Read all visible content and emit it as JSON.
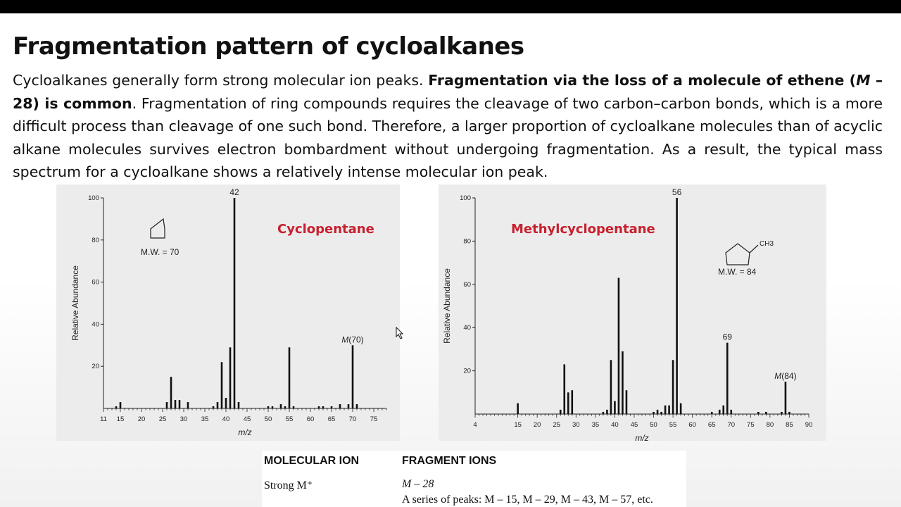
{
  "slide": {
    "title": "Fragmentation pattern of cycloalkanes",
    "paragraph": {
      "p1": "Cycloalkanes generally form strong molecular ion peaks. ",
      "p2_bold": "Fragmentation via the loss of a molecule of ethene (",
      "p2_italic": "M",
      "p2_bold_end": " – 28) is common",
      "p3": ". Fragmentation of ring compounds requires the cleavage of two carbon–carbon bonds, which is a more difficult process than cleavage of one such bond. Therefore, a larger proportion of cycloalkane molecules than of acyclic alkane molecules survives electron bombardment without undergoing fragmentation. As a result, the typical mass spectrum for a cycloalkane shows a relatively intense  molecular ion peak."
    }
  },
  "chart_data": [
    {
      "type": "bar",
      "compound_label": "Cyclopentane",
      "structure_label": "M.W. = 70",
      "xlabel": "m/z",
      "ylabel": "Relative Abundance",
      "xlim": [
        11,
        78
      ],
      "ylim": [
        0,
        100
      ],
      "xticks": [
        11,
        15,
        20,
        25,
        30,
        35,
        40,
        45,
        50,
        55,
        60,
        65,
        70,
        75
      ],
      "yticks": [
        20,
        40,
        60,
        80,
        100
      ],
      "peaks": [
        {
          "x": 14,
          "y": 1
        },
        {
          "x": 15,
          "y": 3
        },
        {
          "x": 26,
          "y": 3
        },
        {
          "x": 27,
          "y": 15
        },
        {
          "x": 28,
          "y": 4
        },
        {
          "x": 29,
          "y": 4
        },
        {
          "x": 31,
          "y": 3
        },
        {
          "x": 37,
          "y": 1
        },
        {
          "x": 38,
          "y": 3
        },
        {
          "x": 39,
          "y": 22
        },
        {
          "x": 40,
          "y": 5
        },
        {
          "x": 41,
          "y": 29
        },
        {
          "x": 42,
          "y": 100
        },
        {
          "x": 43,
          "y": 3
        },
        {
          "x": 50,
          "y": 1
        },
        {
          "x": 51,
          "y": 1
        },
        {
          "x": 53,
          "y": 2
        },
        {
          "x": 54,
          "y": 1
        },
        {
          "x": 55,
          "y": 29
        },
        {
          "x": 56,
          "y": 1
        },
        {
          "x": 62,
          "y": 1
        },
        {
          "x": 63,
          "y": 1
        },
        {
          "x": 65,
          "y": 1
        },
        {
          "x": 67,
          "y": 2
        },
        {
          "x": 69,
          "y": 2
        },
        {
          "x": 70,
          "y": 30
        },
        {
          "x": 71,
          "y": 2
        }
      ],
      "peak_labels": [
        {
          "x": 42,
          "text": "42"
        },
        {
          "x": 70,
          "text_italic": "M",
          "text": "(70)"
        }
      ]
    },
    {
      "type": "bar",
      "compound_label": "Methylcyclopentane",
      "structure_label": "M.W. = 84",
      "structure_group": "CH3",
      "xlabel": "m/z",
      "ylabel": "Relative Abundance",
      "xlim": [
        4,
        90
      ],
      "ylim": [
        0,
        100
      ],
      "xticks": [
        4,
        15,
        20,
        25,
        30,
        35,
        40,
        45,
        50,
        55,
        60,
        65,
        70,
        75,
        80,
        85,
        90
      ],
      "yticks": [
        20,
        40,
        60,
        80,
        100
      ],
      "peaks": [
        {
          "x": 15,
          "y": 5
        },
        {
          "x": 26,
          "y": 2
        },
        {
          "x": 27,
          "y": 23
        },
        {
          "x": 28,
          "y": 10
        },
        {
          "x": 29,
          "y": 11
        },
        {
          "x": 37,
          "y": 1
        },
        {
          "x": 38,
          "y": 2
        },
        {
          "x": 39,
          "y": 25
        },
        {
          "x": 40,
          "y": 6
        },
        {
          "x": 41,
          "y": 63
        },
        {
          "x": 42,
          "y": 29
        },
        {
          "x": 43,
          "y": 11
        },
        {
          "x": 50,
          "y": 1
        },
        {
          "x": 51,
          "y": 2
        },
        {
          "x": 52,
          "y": 1
        },
        {
          "x": 53,
          "y": 4
        },
        {
          "x": 54,
          "y": 4
        },
        {
          "x": 55,
          "y": 25
        },
        {
          "x": 56,
          "y": 100
        },
        {
          "x": 57,
          "y": 5
        },
        {
          "x": 65,
          "y": 1
        },
        {
          "x": 67,
          "y": 2
        },
        {
          "x": 68,
          "y": 4
        },
        {
          "x": 69,
          "y": 33
        },
        {
          "x": 70,
          "y": 2
        },
        {
          "x": 77,
          "y": 1
        },
        {
          "x": 79,
          "y": 1
        },
        {
          "x": 83,
          "y": 1
        },
        {
          "x": 84,
          "y": 15
        },
        {
          "x": 85,
          "y": 1
        }
      ],
      "peak_labels": [
        {
          "x": 56,
          "text": "56"
        },
        {
          "x": 69,
          "text": "69"
        },
        {
          "x": 84,
          "text_italic": "M",
          "text": "(84)"
        }
      ]
    }
  ],
  "table": {
    "headers": [
      "MOLECULAR ION",
      "FRAGMENT IONS"
    ],
    "row1": {
      "col1": "Strong M⁺",
      "col2": "M – 28"
    },
    "row2": {
      "col2": "A series of peaks: M – 15, M – 29, M – 43, M – 57, etc."
    }
  }
}
